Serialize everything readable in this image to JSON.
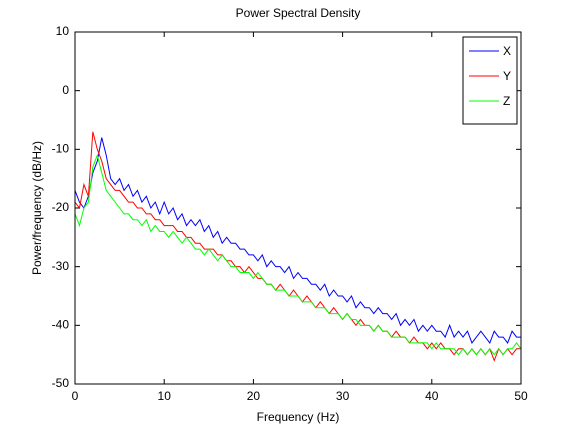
{
  "chart_data": {
    "type": "line",
    "title": "Power Spectral Density",
    "xlabel": "Frequency (Hz)",
    "ylabel": "Power/frequency (dB/Hz)",
    "x": [
      0,
      0.5,
      1,
      1.5,
      2,
      2.5,
      3,
      3.5,
      4,
      4.5,
      5,
      5.5,
      6,
      6.5,
      7,
      7.5,
      8,
      8.5,
      9,
      9.5,
      10,
      10.5,
      11,
      11.5,
      12,
      12.5,
      13,
      13.5,
      14,
      14.5,
      15,
      15.5,
      16,
      16.5,
      17,
      17.5,
      18,
      18.5,
      19,
      19.5,
      20,
      20.5,
      21,
      21.5,
      22,
      22.5,
      23,
      23.5,
      24,
      24.5,
      25,
      25.5,
      26,
      26.5,
      27,
      27.5,
      28,
      28.5,
      29,
      29.5,
      30,
      30.5,
      31,
      31.5,
      32,
      32.5,
      33,
      33.5,
      34,
      34.5,
      35,
      35.5,
      36,
      36.5,
      37,
      37.5,
      38,
      38.5,
      39,
      39.5,
      40,
      40.5,
      41,
      41.5,
      42,
      42.5,
      43,
      43.5,
      44,
      44.5,
      45,
      45.5,
      46,
      46.5,
      47,
      47.5,
      48,
      48.5,
      49,
      49.5,
      50
    ],
    "series": [
      {
        "name": "X",
        "color": "#0000ff",
        "values": [
          -17,
          -19,
          -20,
          -18,
          -14,
          -12,
          -8,
          -11,
          -15,
          -16,
          -15,
          -17,
          -16,
          -18,
          -17,
          -19,
          -18,
          -20,
          -19,
          -21,
          -19,
          -21,
          -20,
          -22,
          -21,
          -23,
          -22,
          -23,
          -22,
          -24,
          -23,
          -25,
          -24,
          -26,
          -25,
          -26,
          -26,
          -27,
          -27,
          -28,
          -28,
          -29,
          -28,
          -30,
          -29,
          -30,
          -30,
          -31,
          -30,
          -32,
          -31,
          -32,
          -32,
          -33,
          -33,
          -34,
          -33,
          -35,
          -34,
          -35,
          -35,
          -36,
          -35,
          -37,
          -36,
          -37,
          -37,
          -38,
          -37,
          -38,
          -38,
          -39,
          -38,
          -40,
          -39,
          -40,
          -39,
          -41,
          -40,
          -41,
          -40,
          -41,
          -41,
          -42,
          -40,
          -42,
          -41,
          -42,
          -41,
          -43,
          -42,
          -41,
          -42,
          -43,
          -41,
          -42,
          -42,
          -43,
          -41,
          -42,
          -42
        ]
      },
      {
        "name": "Y",
        "color": "#ff0000",
        "values": [
          -19,
          -20,
          -16,
          -18,
          -7,
          -10,
          -12,
          -15,
          -16,
          -17,
          -17,
          -18,
          -19,
          -19,
          -20,
          -20,
          -21,
          -21,
          -22,
          -22,
          -23,
          -23,
          -23,
          -24,
          -24,
          -25,
          -25,
          -26,
          -26,
          -27,
          -27,
          -27,
          -28,
          -28,
          -29,
          -29,
          -30,
          -30,
          -31,
          -30,
          -31,
          -32,
          -32,
          -33,
          -33,
          -34,
          -33,
          -34,
          -35,
          -34,
          -35,
          -36,
          -35,
          -36,
          -37,
          -36,
          -37,
          -38,
          -37,
          -38,
          -39,
          -38,
          -39,
          -40,
          -39,
          -40,
          -40,
          -41,
          -40,
          -41,
          -41,
          -42,
          -41,
          -42,
          -42,
          -43,
          -42,
          -43,
          -43,
          -44,
          -43,
          -44,
          -43,
          -44,
          -44,
          -45,
          -44,
          -44,
          -45,
          -44,
          -45,
          -44,
          -45,
          -44,
          -46,
          -44,
          -45,
          -44,
          -45,
          -44,
          -44
        ]
      },
      {
        "name": "Z",
        "color": "#00ff00",
        "values": [
          -21,
          -23,
          -20,
          -19,
          -13,
          -11,
          -14,
          -17,
          -18,
          -19,
          -20,
          -21,
          -21,
          -22,
          -22,
          -23,
          -22,
          -24,
          -23,
          -24,
          -24,
          -25,
          -24,
          -25,
          -26,
          -25,
          -26,
          -27,
          -27,
          -28,
          -27,
          -28,
          -29,
          -28,
          -29,
          -30,
          -30,
          -31,
          -31,
          -31,
          -32,
          -31,
          -32,
          -33,
          -33,
          -34,
          -34,
          -34,
          -35,
          -35,
          -35,
          -36,
          -36,
          -36,
          -37,
          -37,
          -37,
          -38,
          -38,
          -38,
          -39,
          -38,
          -39,
          -39,
          -40,
          -40,
          -40,
          -41,
          -40,
          -41,
          -41,
          -42,
          -42,
          -42,
          -42,
          -43,
          -43,
          -43,
          -43,
          -43,
          -44,
          -43,
          -44,
          -44,
          -44,
          -44,
          -45,
          -44,
          -45,
          -44,
          -45,
          -44,
          -45,
          -44,
          -45,
          -44,
          -45,
          -44,
          -44,
          -43,
          -44
        ]
      }
    ],
    "xlim": [
      0,
      50
    ],
    "xticks": [
      0,
      10,
      20,
      30,
      40,
      50
    ],
    "ylim": [
      -50,
      10
    ],
    "yticks": [
      -50,
      -40,
      -30,
      -20,
      -10,
      0,
      10
    ],
    "grid": false,
    "legend": "northeast"
  }
}
